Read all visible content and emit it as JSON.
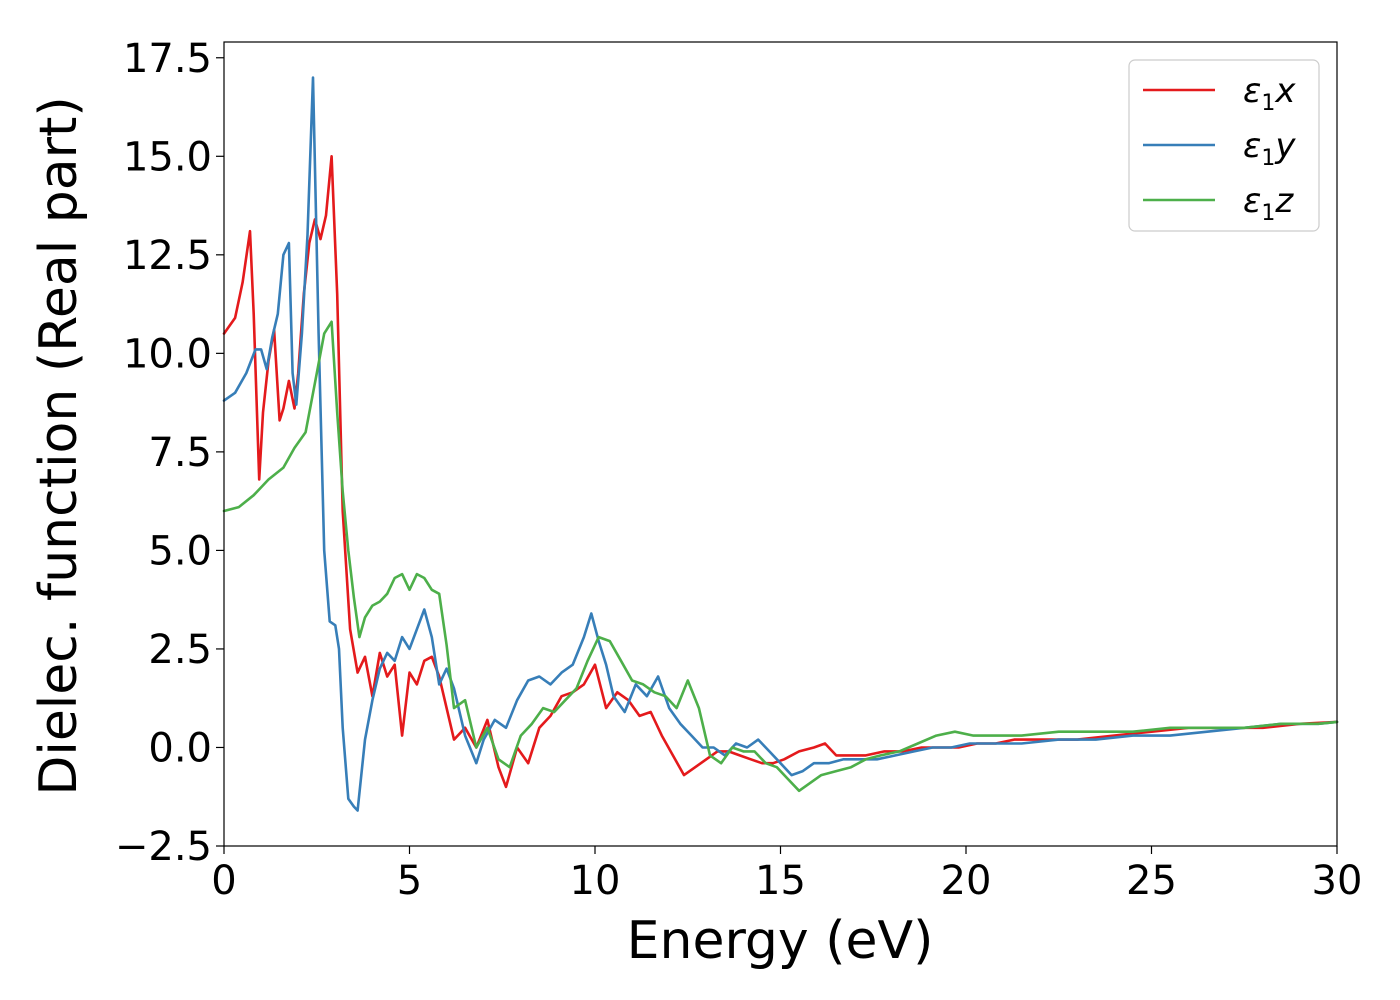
{
  "chart_data": {
    "type": "line",
    "title": "",
    "xlabel": "Energy (eV)",
    "ylabel": "Dielec. function (Real part)",
    "xlim": [
      0,
      30
    ],
    "ylim": [
      -2.5,
      17.9
    ],
    "xticks": [
      0,
      5,
      10,
      15,
      20,
      25,
      30
    ],
    "xtick_labels": [
      "0",
      "5",
      "10",
      "15",
      "20",
      "25",
      "30"
    ],
    "yticks": [
      -2.5,
      0.0,
      2.5,
      5.0,
      7.5,
      10.0,
      12.5,
      15.0,
      17.5
    ],
    "ytick_labels": [
      "−2.5",
      "0.0",
      "2.5",
      "5.0",
      "7.5",
      "10.0",
      "12.5",
      "15.0",
      "17.5"
    ],
    "grid": false,
    "legend_position": "top-right",
    "series": [
      {
        "name": "ε₁x",
        "legend_base": "ε",
        "legend_sub": "1",
        "legend_var": "x",
        "color": "#e41a1c",
        "x": [
          0,
          0.3,
          0.5,
          0.7,
          0.8,
          0.95,
          1.05,
          1.2,
          1.35,
          1.5,
          1.6,
          1.75,
          1.9,
          2.0,
          2.15,
          2.3,
          2.45,
          2.6,
          2.75,
          2.9,
          3.05,
          3.2,
          3.4,
          3.6,
          3.8,
          4.0,
          4.2,
          4.4,
          4.6,
          4.8,
          5.0,
          5.2,
          5.4,
          5.6,
          5.8,
          6.0,
          6.2,
          6.5,
          6.8,
          7.1,
          7.4,
          7.6,
          7.9,
          8.2,
          8.5,
          8.8,
          9.1,
          9.4,
          9.7,
          10.0,
          10.3,
          10.6,
          10.9,
          11.2,
          11.5,
          11.8,
          12.1,
          12.4,
          12.7,
          13.0,
          13.3,
          13.6,
          13.9,
          14.2,
          14.5,
          14.8,
          15.1,
          15.5,
          15.9,
          16.2,
          16.5,
          16.9,
          17.3,
          17.8,
          18.3,
          18.8,
          19.3,
          19.8,
          20.3,
          20.8,
          21.3,
          22.0,
          23.0,
          24.0,
          25.0,
          26.0,
          27.0,
          28.0,
          29.0,
          30.0
        ],
        "y": [
          10.5,
          10.9,
          11.8,
          13.1,
          11.0,
          6.8,
          8.5,
          9.8,
          10.6,
          8.3,
          8.6,
          9.3,
          8.6,
          9.5,
          11.5,
          12.8,
          13.4,
          12.9,
          13.5,
          15.0,
          11.5,
          6.0,
          3.0,
          1.9,
          2.3,
          1.3,
          2.4,
          1.8,
          2.1,
          0.3,
          1.9,
          1.6,
          2.2,
          2.3,
          1.8,
          1.0,
          0.2,
          0.5,
          0.0,
          0.7,
          -0.5,
          -1.0,
          0.0,
          -0.4,
          0.5,
          0.8,
          1.3,
          1.4,
          1.6,
          2.1,
          1.0,
          1.4,
          1.2,
          0.8,
          0.9,
          0.3,
          -0.2,
          -0.7,
          -0.5,
          -0.3,
          -0.1,
          -0.1,
          -0.2,
          -0.3,
          -0.4,
          -0.4,
          -0.3,
          -0.1,
          0.0,
          0.1,
          -0.2,
          -0.2,
          -0.2,
          -0.1,
          -0.1,
          0.0,
          0.0,
          0.0,
          0.1,
          0.1,
          0.2,
          0.2,
          0.2,
          0.3,
          0.4,
          0.5,
          0.5,
          0.5,
          0.6,
          0.65
        ]
      },
      {
        "name": "ε₁y",
        "legend_base": "ε",
        "legend_sub": "1",
        "legend_var": "y",
        "color": "#377eb8",
        "x": [
          0,
          0.3,
          0.6,
          0.85,
          1.0,
          1.15,
          1.3,
          1.45,
          1.6,
          1.75,
          1.85,
          1.95,
          2.1,
          2.25,
          2.4,
          2.55,
          2.7,
          2.85,
          3.0,
          3.1,
          3.2,
          3.35,
          3.5,
          3.6,
          3.8,
          4.0,
          4.2,
          4.4,
          4.6,
          4.8,
          5.0,
          5.2,
          5.4,
          5.6,
          5.8,
          6.0,
          6.2,
          6.5,
          6.8,
          7.0,
          7.3,
          7.6,
          7.9,
          8.2,
          8.5,
          8.8,
          9.1,
          9.4,
          9.7,
          9.9,
          10.1,
          10.3,
          10.5,
          10.8,
          11.1,
          11.4,
          11.7,
          12.0,
          12.3,
          12.6,
          12.9,
          13.2,
          13.5,
          13.8,
          14.1,
          14.4,
          14.7,
          15.0,
          15.3,
          15.6,
          15.9,
          16.3,
          16.7,
          17.1,
          17.6,
          18.1,
          18.6,
          19.1,
          19.6,
          20.1,
          20.6,
          21.5,
          22.5,
          23.5,
          24.5,
          25.5,
          26.5,
          27.5,
          28.5,
          29.5,
          30.0
        ],
        "y": [
          8.8,
          9.0,
          9.5,
          10.1,
          10.1,
          9.6,
          10.4,
          11.0,
          12.5,
          12.8,
          9.5,
          8.7,
          10.5,
          13.0,
          17.0,
          10.5,
          5.0,
          3.2,
          3.1,
          2.5,
          0.5,
          -1.3,
          -1.5,
          -1.6,
          0.2,
          1.2,
          2.0,
          2.4,
          2.2,
          2.8,
          2.5,
          3.0,
          3.5,
          2.8,
          1.6,
          2.0,
          1.5,
          0.3,
          -0.4,
          0.2,
          0.7,
          0.5,
          1.2,
          1.7,
          1.8,
          1.6,
          1.9,
          2.1,
          2.8,
          3.4,
          2.7,
          2.1,
          1.3,
          0.9,
          1.6,
          1.3,
          1.8,
          1.0,
          0.6,
          0.3,
          0.0,
          0.0,
          -0.2,
          0.1,
          0.0,
          0.2,
          -0.1,
          -0.4,
          -0.7,
          -0.6,
          -0.4,
          -0.4,
          -0.3,
          -0.3,
          -0.3,
          -0.2,
          -0.1,
          0.0,
          0.0,
          0.1,
          0.1,
          0.1,
          0.2,
          0.2,
          0.3,
          0.3,
          0.4,
          0.5,
          0.6,
          0.6,
          0.65
        ]
      },
      {
        "name": "ε₁z",
        "legend_base": "ε",
        "legend_sub": "1",
        "legend_var": "z",
        "color": "#4daf4a",
        "x": [
          0,
          0.4,
          0.8,
          1.2,
          1.6,
          1.9,
          2.2,
          2.5,
          2.7,
          2.9,
          3.05,
          3.2,
          3.35,
          3.5,
          3.65,
          3.8,
          4.0,
          4.2,
          4.4,
          4.6,
          4.8,
          5.0,
          5.2,
          5.4,
          5.6,
          5.8,
          6.0,
          6.2,
          6.5,
          6.8,
          7.1,
          7.4,
          7.7,
          8.0,
          8.3,
          8.6,
          8.9,
          9.2,
          9.5,
          9.8,
          10.1,
          10.4,
          10.7,
          11.0,
          11.3,
          11.6,
          11.9,
          12.2,
          12.5,
          12.8,
          13.1,
          13.4,
          13.7,
          14.0,
          14.3,
          14.6,
          14.9,
          15.2,
          15.5,
          15.8,
          16.1,
          16.5,
          16.9,
          17.3,
          17.7,
          18.2,
          18.7,
          19.2,
          19.7,
          20.2,
          20.7,
          21.5,
          22.5,
          23.5,
          24.5,
          25.5,
          26.5,
          27.5,
          28.5,
          29.5,
          30.0
        ],
        "y": [
          6.0,
          6.1,
          6.4,
          6.8,
          7.1,
          7.6,
          8.0,
          9.5,
          10.5,
          10.8,
          8.5,
          6.5,
          5.0,
          3.8,
          2.8,
          3.3,
          3.6,
          3.7,
          3.9,
          4.3,
          4.4,
          4.0,
          4.4,
          4.3,
          4.0,
          3.9,
          2.6,
          1.0,
          1.2,
          0.0,
          0.5,
          -0.3,
          -0.5,
          0.3,
          0.6,
          1.0,
          0.9,
          1.2,
          1.5,
          2.2,
          2.8,
          2.7,
          2.2,
          1.7,
          1.6,
          1.4,
          1.3,
          1.0,
          1.7,
          1.0,
          -0.2,
          -0.4,
          0.0,
          -0.1,
          -0.1,
          -0.4,
          -0.5,
          -0.8,
          -1.1,
          -0.9,
          -0.7,
          -0.6,
          -0.5,
          -0.3,
          -0.2,
          -0.1,
          0.1,
          0.3,
          0.4,
          0.3,
          0.3,
          0.3,
          0.4,
          0.4,
          0.4,
          0.5,
          0.5,
          0.5,
          0.6,
          0.6,
          0.65
        ]
      }
    ]
  }
}
